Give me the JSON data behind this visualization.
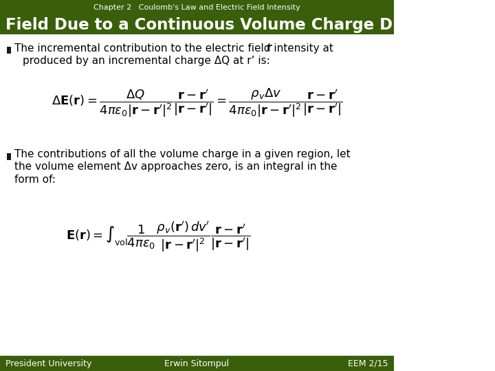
{
  "header_text": "Chapter 2   Coulomb's Law and Electric Field Intensity",
  "title_text": "Field Due to a Continuous Volume Charge Distribution",
  "dark_green": "#3a5f0b",
  "darker_green": "#2d4a08",
  "white": "#ffffff",
  "black": "#000000",
  "bg_color": "#ffffff",
  "bullet_color": "#1a1a1a",
  "footer_left": "President University",
  "footer_center": "Erwin Sitompul",
  "footer_right": "EEM 2/15",
  "eq1_label": "$\\Delta\\mathbf{E}(\\mathbf{r}) = $",
  "eq1_frac1_num": "$\\Delta Q$",
  "eq1_frac1_den": "$4\\pi\\varepsilon_0|\\mathbf{r}-\\mathbf{r}'|^2$",
  "eq1_vec1_num": "$\\mathbf{r}-\\mathbf{r}'$",
  "eq1_vec1_den": "$|\\mathbf{r}-\\mathbf{r}'|$",
  "eq1_eq": "$=$",
  "eq1_frac2_num": "$\\rho_v \\Delta v$",
  "eq1_frac2_den": "$4\\pi\\varepsilon_0|\\mathbf{r}-\\mathbf{r}'|^2$",
  "eq1_vec2_num": "$\\mathbf{r}-\\mathbf{r}'$",
  "eq1_vec2_den": "$|\\mathbf{r}-\\mathbf{r}'|$"
}
